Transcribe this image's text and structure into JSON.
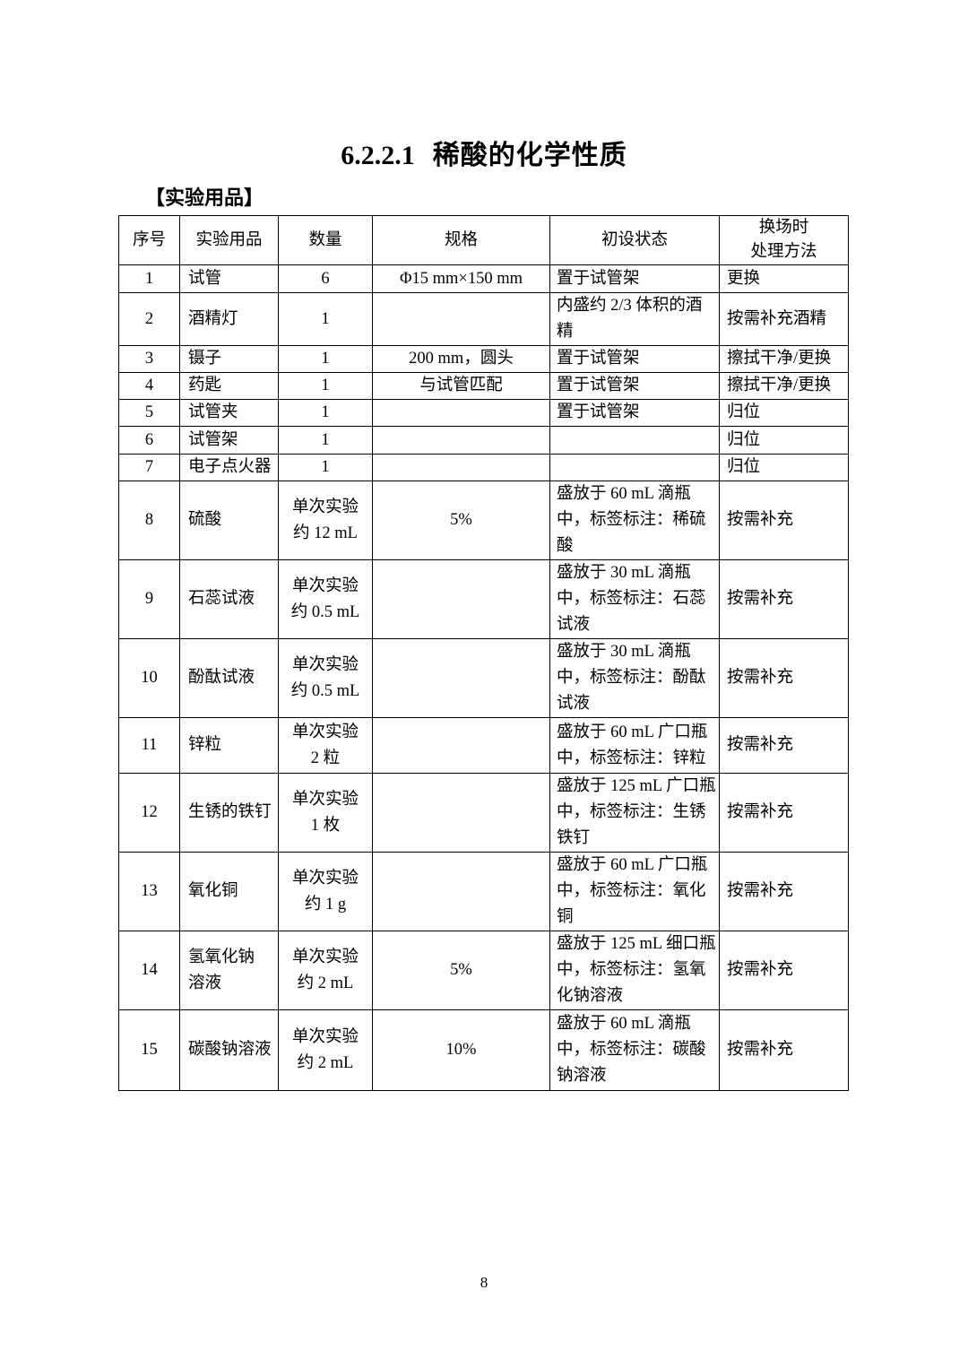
{
  "title": {
    "number": "6.2.2.1",
    "text": "稀酸的化学性质"
  },
  "section_label": "【实验用品】",
  "page_number": "8",
  "table": {
    "headers": [
      "序号",
      "实验用品",
      "数量",
      "规格",
      "初设状态",
      "换场时\n处理方法"
    ],
    "rows": [
      [
        "1",
        "试管",
        "6",
        "Φ15 mm×150 mm",
        "置于试管架",
        "更换"
      ],
      [
        "2",
        "酒精灯",
        "1",
        "",
        "内盛约 2/3 体积的酒\n精",
        "按需补充酒精"
      ],
      [
        "3",
        "镊子",
        "1",
        "200 mm，圆头",
        "置于试管架",
        "擦拭干净/更换"
      ],
      [
        "4",
        "药匙",
        "1",
        "与试管匹配",
        "置于试管架",
        "擦拭干净/更换"
      ],
      [
        "5",
        "试管夹",
        "1",
        "",
        "置于试管架",
        "归位"
      ],
      [
        "6",
        "试管架",
        "1",
        "",
        "",
        "归位"
      ],
      [
        "7",
        "电子点火器",
        "1",
        "",
        "",
        "归位"
      ],
      [
        "8",
        "硫酸",
        "单次实验\n约 12 mL",
        "5%",
        "盛放于 60 mL 滴瓶\n中，标签标注：稀硫\n酸",
        "按需补充"
      ],
      [
        "9",
        "石蕊试液",
        "单次实验\n约 0.5 mL",
        "",
        "盛放于 30 mL 滴瓶\n中，标签标注：石蕊\n试液",
        "按需补充"
      ],
      [
        "10",
        "酚酞试液",
        "单次实验\n约 0.5 mL",
        "",
        "盛放于 30 mL 滴瓶\n中，标签标注：酚酞\n试液",
        "按需补充"
      ],
      [
        "11",
        "锌粒",
        "单次实验\n2 粒",
        "",
        "盛放于 60 mL 广口瓶\n中，标签标注：锌粒",
        "按需补充"
      ],
      [
        "12",
        "生锈的铁钉",
        "单次实验\n1 枚",
        "",
        "盛放于 125 mL 广口瓶\n中，标签标注：生锈\n铁钉",
        "按需补充"
      ],
      [
        "13",
        "氧化铜",
        "单次实验\n约 1 g",
        "",
        "盛放于 60 mL 广口瓶\n中，标签标注：氧化\n铜",
        "按需补充"
      ],
      [
        "14",
        "氢氧化钠\n溶液",
        "单次实验\n约 2 mL",
        "5%",
        "盛放于 125 mL 细口瓶\n中，标签标注：氢氧\n化钠溶液",
        "按需补充"
      ],
      [
        "15",
        "碳酸钠溶液",
        "单次实验\n约 2 mL",
        "10%",
        "盛放于 60 mL 滴瓶\n中，标签标注：碳酸\n钠溶液",
        "按需补充"
      ]
    ]
  }
}
